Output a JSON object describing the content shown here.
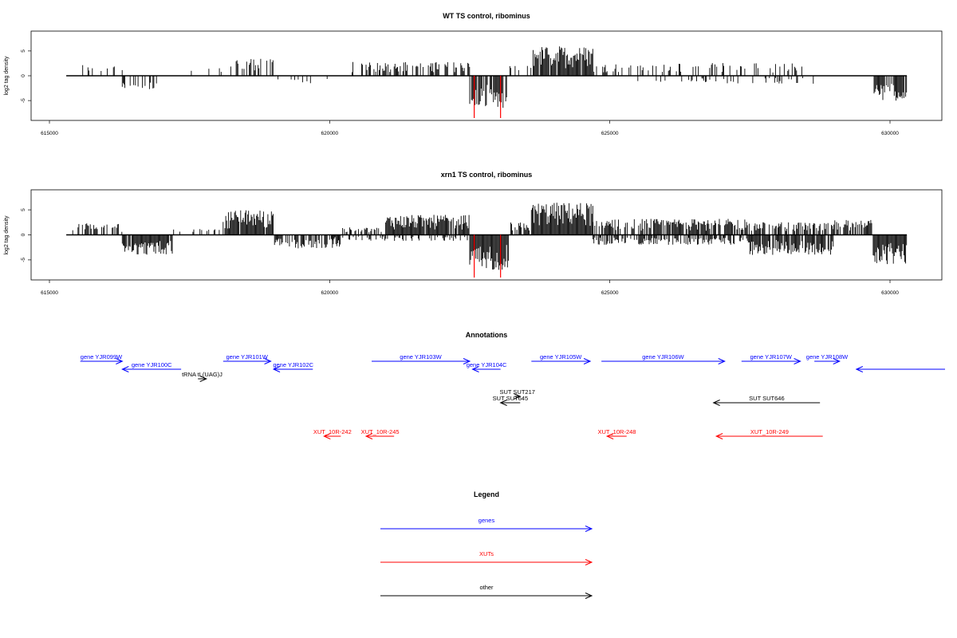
{
  "colors": {
    "gene": "#0000ff",
    "xut": "#ff0000",
    "other": "#000000",
    "hit": "#ff0000",
    "bar": "#000000"
  },
  "chart_data": [
    {
      "type": "bar",
      "title": "WT TS control, ribominus",
      "ylabel": "log2 tag density",
      "xlim": [
        615000,
        631000
      ],
      "ylim": [
        -9,
        9
      ],
      "xticks": [
        "615000",
        "620000",
        "625000",
        "630000"
      ],
      "xtick_values": [
        615000,
        620000,
        625000,
        630000
      ],
      "yticks": [
        "-5",
        "0",
        "5"
      ],
      "ytick_values": [
        -5,
        0,
        5
      ],
      "baseline": [
        615300,
        630300
      ],
      "highlight_x": [
        622580,
        623050
      ],
      "density_segments": [
        {
          "from": 615500,
          "to": 616300,
          "dir": 1,
          "amp": 2.3,
          "fill": 0.25
        },
        {
          "from": 616300,
          "to": 617000,
          "dir": -1,
          "amp": 2.8,
          "fill": 0.35
        },
        {
          "from": 617500,
          "to": 618300,
          "dir": 1,
          "amp": 2.0,
          "fill": 0.12
        },
        {
          "from": 618300,
          "to": 619000,
          "dir": 1,
          "amp": 3.5,
          "fill": 0.45
        },
        {
          "from": 619000,
          "to": 620000,
          "dir": -1,
          "amp": 1.5,
          "fill": 0.15
        },
        {
          "from": 620400,
          "to": 622500,
          "dir": 1,
          "amp": 2.8,
          "fill": 0.45
        },
        {
          "from": 622500,
          "to": 623200,
          "dir": -1,
          "amp": 6.5,
          "fill": 0.8
        },
        {
          "from": 623200,
          "to": 623600,
          "dir": 1,
          "amp": 2.0,
          "fill": 0.3
        },
        {
          "from": 623600,
          "to": 624700,
          "dir": 1,
          "amp": 6.0,
          "fill": 0.9
        },
        {
          "from": 624700,
          "to": 628500,
          "dir": 1,
          "amp": 2.6,
          "fill": 0.25
        },
        {
          "from": 625500,
          "to": 628800,
          "dir": -1,
          "amp": 1.6,
          "fill": 0.15
        },
        {
          "from": 629700,
          "to": 630300,
          "dir": -1,
          "amp": 5.0,
          "fill": 0.75
        }
      ]
    },
    {
      "type": "bar",
      "title": "xrn1 TS control, ribominus",
      "ylabel": "log2 tag density",
      "xlim": [
        615000,
        631000
      ],
      "ylim": [
        -9,
        9
      ],
      "xticks": [
        "615000",
        "620000",
        "625000",
        "630000"
      ],
      "xtick_values": [
        615000,
        620000,
        625000,
        630000
      ],
      "yticks": [
        "-5",
        "0",
        "5"
      ],
      "ytick_values": [
        -5,
        0,
        5
      ],
      "baseline": [
        615300,
        630300
      ],
      "highlight_x": [
        622580,
        623050
      ],
      "density_segments": [
        {
          "from": 615400,
          "to": 616300,
          "dir": 1,
          "amp": 2.3,
          "fill": 0.6
        },
        {
          "from": 616300,
          "to": 617200,
          "dir": -1,
          "amp": 4.0,
          "fill": 0.9
        },
        {
          "from": 617200,
          "to": 618100,
          "dir": 1,
          "amp": 1.2,
          "fill": 0.15
        },
        {
          "from": 618100,
          "to": 619000,
          "dir": 1,
          "amp": 5.0,
          "fill": 0.95
        },
        {
          "from": 619000,
          "to": 620200,
          "dir": -1,
          "amp": 2.8,
          "fill": 0.7
        },
        {
          "from": 620200,
          "to": 621000,
          "dir": 1,
          "amp": 1.5,
          "fill": 0.4
        },
        {
          "from": 621000,
          "to": 622500,
          "dir": 1,
          "amp": 4.0,
          "fill": 0.9
        },
        {
          "from": 620000,
          "to": 622500,
          "dir": -1,
          "amp": 1.2,
          "fill": 0.35
        },
        {
          "from": 622500,
          "to": 623200,
          "dir": -1,
          "amp": 7.0,
          "fill": 1.0
        },
        {
          "from": 623200,
          "to": 623600,
          "dir": 1,
          "amp": 2.5,
          "fill": 0.6
        },
        {
          "from": 623600,
          "to": 624700,
          "dir": 1,
          "amp": 6.5,
          "fill": 1.0
        },
        {
          "from": 624700,
          "to": 627500,
          "dir": 1,
          "amp": 3.2,
          "fill": 0.7
        },
        {
          "from": 624700,
          "to": 627500,
          "dir": -1,
          "amp": 2.0,
          "fill": 0.6
        },
        {
          "from": 627500,
          "to": 629000,
          "dir": -1,
          "amp": 4.0,
          "fill": 0.9
        },
        {
          "from": 627500,
          "to": 629000,
          "dir": 1,
          "amp": 2.5,
          "fill": 0.6
        },
        {
          "from": 629000,
          "to": 629700,
          "dir": 1,
          "amp": 3.0,
          "fill": 0.7
        },
        {
          "from": 629700,
          "to": 630300,
          "dir": -1,
          "amp": 6.0,
          "fill": 1.0
        }
      ]
    }
  ],
  "annotations": {
    "title": "Annotations",
    "features": [
      {
        "label": "gene YJR099W",
        "kind": "gene",
        "strand": "+",
        "start": 615550,
        "end": 616300,
        "row": 0
      },
      {
        "label": "gene YJR100C",
        "kind": "gene",
        "strand": "-",
        "start": 616300,
        "end": 617350,
        "row": 1
      },
      {
        "label": "tRNA tL(UAG)J",
        "kind": "other",
        "strand": "+",
        "start": 617650,
        "end": 617800,
        "row": 2
      },
      {
        "label": "gene YJR101W",
        "kind": "gene",
        "strand": "+",
        "start": 618100,
        "end": 618950,
        "row": 0
      },
      {
        "label": "gene YJR102C",
        "kind": "gene",
        "strand": "-",
        "start": 619000,
        "end": 619700,
        "row": 1
      },
      {
        "label": "gene YJR103W",
        "kind": "gene",
        "strand": "+",
        "start": 620750,
        "end": 622500,
        "row": 0
      },
      {
        "label": "gene YJR104C",
        "kind": "gene",
        "strand": "-",
        "start": 622550,
        "end": 623050,
        "row": 1
      },
      {
        "label": "gene YJR105W",
        "kind": "gene",
        "strand": "+",
        "start": 623600,
        "end": 624650,
        "row": 0
      },
      {
        "label": "gene YJR106W",
        "kind": "gene",
        "strand": "+",
        "start": 624850,
        "end": 627050,
        "row": 0
      },
      {
        "label": "gene YJR107W",
        "kind": "gene",
        "strand": "+",
        "start": 627350,
        "end": 628400,
        "row": 0
      },
      {
        "label": "gene YJR108W",
        "kind": "gene",
        "strand": "+",
        "start": 628650,
        "end": 629100,
        "row": 0
      },
      {
        "label": "",
        "kind": "gene",
        "strand": "-",
        "start": 629400,
        "end": 631000,
        "row": 1
      },
      {
        "label": "SUT SUT217",
        "kind": "other",
        "strand": "+",
        "start": 623300,
        "end": 623400,
        "row": 3
      },
      {
        "label": "SUT SUT645",
        "kind": "other",
        "strand": "-",
        "start": 623050,
        "end": 623400,
        "row": 4
      },
      {
        "label": "SUT SUT646",
        "kind": "other",
        "strand": "-",
        "start": 626850,
        "end": 628750,
        "row": 4
      },
      {
        "label": "XUT_10R-242",
        "kind": "xut",
        "strand": "-",
        "start": 619900,
        "end": 620200,
        "row": 5
      },
      {
        "label": "XUT_10R-245",
        "kind": "xut",
        "strand": "-",
        "start": 620650,
        "end": 621150,
        "row": 5
      },
      {
        "label": "XUT_10R-248",
        "kind": "xut",
        "strand": "-",
        "start": 624950,
        "end": 625300,
        "row": 5
      },
      {
        "label": "XUT_10R-249",
        "kind": "xut",
        "strand": "-",
        "start": 626900,
        "end": 628800,
        "row": 5
      }
    ]
  },
  "legend": {
    "title": "Legend",
    "items": [
      {
        "label": "genes",
        "kind": "gene"
      },
      {
        "label": "XUTs",
        "kind": "xut"
      },
      {
        "label": "other",
        "kind": "other"
      }
    ]
  }
}
